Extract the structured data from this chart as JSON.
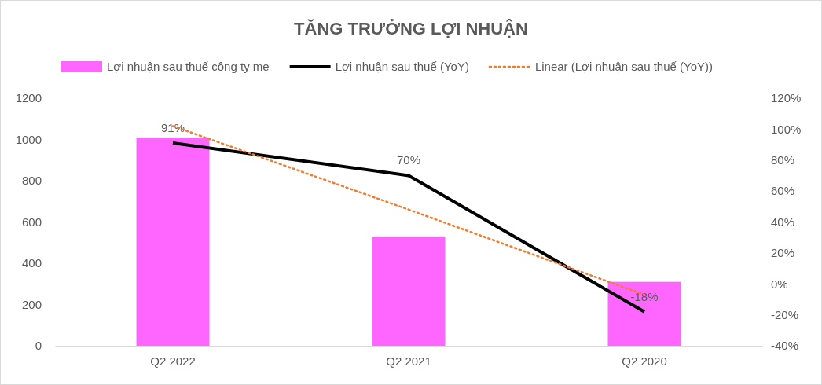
{
  "chart_data": {
    "type": "bar",
    "title": "TĂNG TRƯỞNG LỢI NHUẬN",
    "categories": [
      "Q2 2022",
      "Q2 2021",
      "Q2 2020"
    ],
    "series": [
      {
        "name": "Lợi nhuận sau thuế công ty mẹ",
        "color": "#ff66ff",
        "values": [
          1010,
          530,
          310
        ]
      },
      {
        "name": "Lợi nhuận sau thuế (YoY)",
        "type": "line",
        "axis": "y2",
        "color": "#000000",
        "values": [
          91,
          70,
          -18
        ],
        "value_labels": [
          "91%",
          "70%",
          "-18%"
        ],
        "line_style": "solid"
      },
      {
        "name": "Linear (Lợi nhuận sau thuế (YoY))",
        "type": "line",
        "axis": "y2",
        "color": "#ed7d31",
        "values": [
          102,
          48,
          -7
        ],
        "line_style": "dotted"
      }
    ],
    "ylim": [
      0,
      1200
    ],
    "yticks": [
      0,
      200,
      400,
      600,
      800,
      1000,
      1200
    ],
    "y2lim": [
      -40,
      120
    ],
    "y2ticks": [
      {
        "value": -40,
        "label": "-40%"
      },
      {
        "value": -20,
        "label": "-20%"
      },
      {
        "value": 0,
        "label": "0%"
      },
      {
        "value": 20,
        "label": "20%"
      },
      {
        "value": 40,
        "label": "40%"
      },
      {
        "value": 60,
        "label": "60%"
      },
      {
        "value": 80,
        "label": "80%"
      },
      {
        "value": 100,
        "label": "100%"
      },
      {
        "value": 120,
        "label": "120%"
      }
    ],
    "legend": "top",
    "marker": "none"
  }
}
